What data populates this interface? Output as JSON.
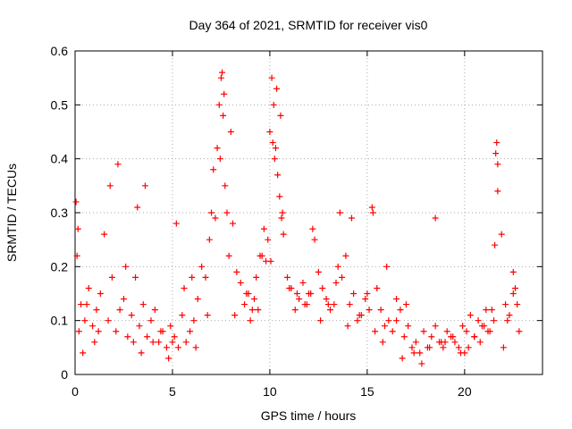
{
  "chart_data": {
    "type": "scatter",
    "title": "Day 364 of 2021, SRMTID for receiver vis0",
    "xlabel": "GPS time / hours",
    "ylabel": "SRMTID / TECUs",
    "xlim": [
      0,
      24
    ],
    "ylim": [
      0,
      0.6
    ],
    "x_ticks": [
      0,
      5,
      10,
      15,
      20
    ],
    "x_tick_labels": [
      "0",
      "5",
      "10",
      "15",
      "20"
    ],
    "y_ticks": [
      0,
      0.1,
      0.2,
      0.3,
      0.4,
      0.5,
      0.6
    ],
    "y_tick_labels": [
      "0",
      "0.1",
      "0.2",
      "0.3",
      "0.4",
      "0.5",
      "0.6"
    ],
    "grid": true,
    "marker": "+",
    "color": "#ff0000",
    "series": [
      {
        "name": "SRMTID",
        "x": [
          0.05,
          0.15,
          0.3,
          0.5,
          0.7,
          0.9,
          1.1,
          1.3,
          1.5,
          1.7,
          1.9,
          2.1,
          2.3,
          2.5,
          2.7,
          2.9,
          3.1,
          3.3,
          3.5,
          3.7,
          3.9,
          4.1,
          4.3,
          4.5,
          4.7,
          4.9,
          5.1,
          5.3,
          5.5,
          5.7,
          5.9,
          6.1,
          6.3,
          6.5,
          6.7,
          6.9,
          7.0,
          7.1,
          7.3,
          7.4,
          7.5,
          7.6,
          7.7,
          7.8,
          7.9,
          8.1,
          8.3,
          8.5,
          8.7,
          8.9,
          9.1,
          9.3,
          9.5,
          9.7,
          9.9,
          10.0,
          10.1,
          10.2,
          10.3,
          10.4,
          10.5,
          10.6,
          10.7,
          10.9,
          11.1,
          11.3,
          11.5,
          11.7,
          11.9,
          12.1,
          12.3,
          12.5,
          12.7,
          12.9,
          13.1,
          13.3,
          13.5,
          13.7,
          13.9,
          14.1,
          14.3,
          14.5,
          14.7,
          14.9,
          15.1,
          15.3,
          15.5,
          15.7,
          15.9,
          16.1,
          16.3,
          16.5,
          16.7,
          16.9,
          17.1,
          17.3,
          17.5,
          17.7,
          17.9,
          18.1,
          18.3,
          18.5,
          18.7,
          18.9,
          19.1,
          19.3,
          19.5,
          19.7,
          19.9,
          20.1,
          20.3,
          20.5,
          20.7,
          20.9,
          21.1,
          21.3,
          21.5,
          21.6,
          21.7,
          21.9,
          22.1,
          22.3,
          22.5,
          22.7,
          0.1,
          0.4,
          1.0,
          1.8,
          2.2,
          3.2,
          3.6,
          5.2,
          6.2,
          6.8,
          7.2,
          7.45,
          7.55,
          7.65,
          8.0,
          9.6,
          9.8,
          10.05,
          10.15,
          10.25,
          10.35,
          10.55,
          10.65,
          12.2,
          13.6,
          14.2,
          15.25,
          16.0,
          18.5,
          21.55,
          21.65,
          21.7,
          22.5,
          11.0,
          12.0,
          13.0,
          14.0,
          15.0,
          16.5,
          17.0,
          19.0,
          20.0,
          20.5,
          21.0,
          22.0,
          22.8,
          4.0,
          5.0,
          6.0,
          0.2,
          0.6,
          1.2,
          2.6,
          3.0,
          3.4,
          4.4,
          4.8,
          5.6,
          8.2,
          8.8,
          9.0,
          9.2,
          9.4,
          11.4,
          11.8,
          12.6,
          13.4,
          14.6,
          15.4,
          15.8,
          16.8,
          17.4,
          17.8,
          18.2,
          18.8,
          19.4,
          19.8,
          20.2,
          20.8,
          21.2,
          21.4,
          22.2,
          22.6
        ],
        "y": [
          0.32,
          0.27,
          0.13,
          0.1,
          0.16,
          0.09,
          0.12,
          0.15,
          0.26,
          0.1,
          0.18,
          0.08,
          0.12,
          0.14,
          0.07,
          0.11,
          0.18,
          0.09,
          0.13,
          0.07,
          0.1,
          0.12,
          0.06,
          0.08,
          0.05,
          0.09,
          0.07,
          0.05,
          0.11,
          0.06,
          0.08,
          0.1,
          0.14,
          0.2,
          0.18,
          0.25,
          0.3,
          0.38,
          0.42,
          0.5,
          0.55,
          0.48,
          0.35,
          0.3,
          0.22,
          0.28,
          0.19,
          0.17,
          0.13,
          0.15,
          0.12,
          0.18,
          0.22,
          0.27,
          0.25,
          0.45,
          0.55,
          0.5,
          0.42,
          0.37,
          0.33,
          0.29,
          0.26,
          0.18,
          0.16,
          0.12,
          0.14,
          0.17,
          0.13,
          0.15,
          0.25,
          0.19,
          0.16,
          0.14,
          0.12,
          0.13,
          0.2,
          0.18,
          0.22,
          0.13,
          0.15,
          0.1,
          0.11,
          0.14,
          0.12,
          0.3,
          0.16,
          0.12,
          0.09,
          0.1,
          0.08,
          0.14,
          0.12,
          0.07,
          0.09,
          0.05,
          0.06,
          0.04,
          0.08,
          0.05,
          0.07,
          0.09,
          0.06,
          0.05,
          0.08,
          0.07,
          0.06,
          0.05,
          0.09,
          0.08,
          0.11,
          0.07,
          0.1,
          0.09,
          0.12,
          0.08,
          0.1,
          0.41,
          0.34,
          0.26,
          0.13,
          0.11,
          0.15,
          0.13,
          0.22,
          0.04,
          0.06,
          0.35,
          0.39,
          0.31,
          0.35,
          0.28,
          0.05,
          0.11,
          0.29,
          0.4,
          0.56,
          0.52,
          0.45,
          0.22,
          0.21,
          0.21,
          0.43,
          0.4,
          0.53,
          0.48,
          0.3,
          0.27,
          0.3,
          0.29,
          0.31,
          0.2,
          0.29,
          0.24,
          0.43,
          0.39,
          0.19,
          0.16,
          0.15,
          0.13,
          0.09,
          0.15,
          0.1,
          0.13,
          0.06,
          0.04,
          0.07,
          0.09,
          0.05,
          0.08,
          0.06,
          0.06,
          0.18,
          0.08,
          0.13,
          0.08,
          0.2,
          0.06,
          0.04,
          0.08,
          0.03,
          0.16,
          0.11,
          0.15,
          0.1,
          0.14,
          0.12,
          0.15,
          0.13,
          0.1,
          0.17,
          0.11,
          0.08,
          0.06,
          0.03,
          0.04,
          0.02,
          0.05,
          0.06,
          0.07,
          0.04,
          0.05,
          0.06,
          0.08,
          0.12,
          0.1,
          0.16
        ]
      }
    ]
  }
}
